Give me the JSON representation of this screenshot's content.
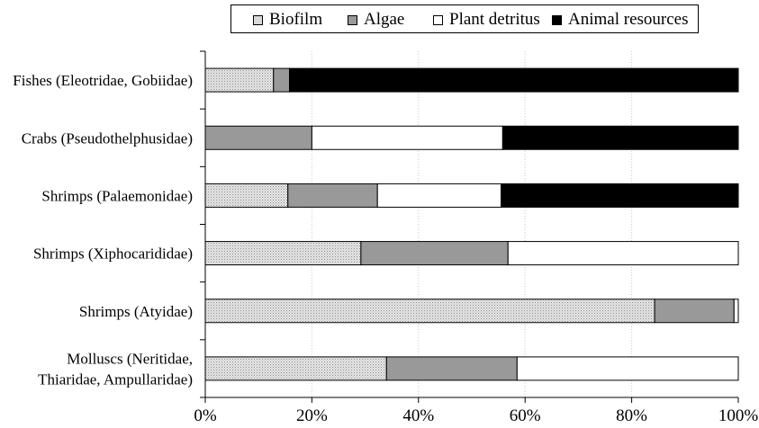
{
  "chart_data": {
    "type": "bar",
    "orientation": "horizontal",
    "stacked": true,
    "percent": true,
    "categories": [
      [
        "Fishes (Eleotridae, Gobiidae)"
      ],
      [
        "Crabs (Pseudothelphusidae)"
      ],
      [
        "Shrimps (Palaemonidae)"
      ],
      [
        "Shrimps (Xiphocarididae)"
      ],
      [
        "Shrimps (Atyidae)"
      ],
      [
        "Molluscs (Neritidae,",
        "Thiaridae, Ampullaridae)"
      ]
    ],
    "series": [
      {
        "name": "Biofilm",
        "color": "#d9d9d9",
        "pattern": "dots",
        "values": [
          12.8,
          0,
          15.5,
          29.2,
          84.3,
          34.0
        ]
      },
      {
        "name": "Algae",
        "color": "#999999",
        "values": [
          3.0,
          20.0,
          16.8,
          27.6,
          14.9,
          24.5
        ]
      },
      {
        "name": "Plant detritus",
        "color": "#ffffff",
        "values": [
          0,
          35.8,
          23.2,
          43.2,
          0.8,
          41.5
        ]
      },
      {
        "name": "Animal resources",
        "color": "#000000",
        "values": [
          84.2,
          44.2,
          44.5,
          0,
          0,
          0
        ]
      }
    ],
    "xlim": [
      0,
      100
    ],
    "xticks": [
      "0%",
      "20%",
      "40%",
      "60%",
      "80%",
      "100%"
    ],
    "grid": "vertical dotted",
    "legend": "top"
  }
}
